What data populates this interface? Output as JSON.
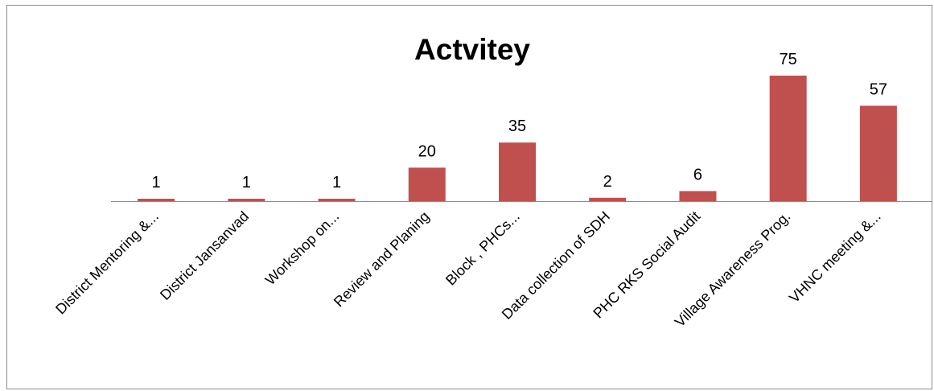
{
  "chart_data": {
    "type": "bar",
    "title": "Actvitey",
    "xlabel": "",
    "ylabel": "",
    "categories": [
      "District Mentoring &...",
      "District Jansanvad",
      "Workshop on...",
      "Review and Planing",
      "Block , PHCs...",
      "Data collection of SDH",
      "PHC RKS Social Audit",
      "Village Awareness Prog.",
      "VHNC meeting &..."
    ],
    "values": [
      1,
      1,
      1,
      20,
      35,
      2,
      6,
      75,
      57
    ],
    "data_labels": [
      "1",
      "1",
      "1",
      "20",
      "35",
      "2",
      "6",
      "75",
      "57"
    ],
    "ylim": [
      0,
      80
    ],
    "grid": false,
    "legend": "none",
    "colors": {
      "bar": "#c0504d",
      "axis": "#8c8c8c"
    }
  }
}
